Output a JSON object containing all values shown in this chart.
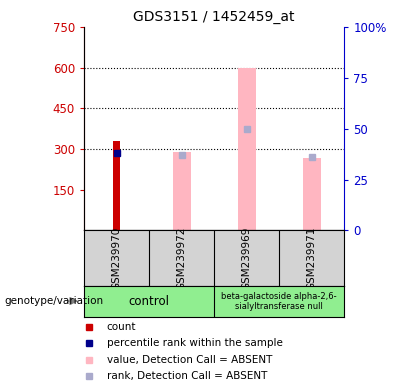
{
  "title": "GDS3151 / 1452459_at",
  "samples": [
    "GSM239970",
    "GSM239972",
    "GSM239969",
    "GSM239971"
  ],
  "x_positions": [
    1,
    2,
    3,
    4
  ],
  "count_values": [
    330,
    null,
    null,
    null
  ],
  "count_color": "#CC0000",
  "rank_pct_values": [
    38,
    null,
    null,
    null
  ],
  "rank_color": "#00008B",
  "absent_value_values": [
    null,
    290,
    600,
    265
  ],
  "absent_value_color": "#FFB6C1",
  "absent_rank_pct_values": [
    null,
    37,
    50,
    36
  ],
  "absent_rank_color": "#AAAACC",
  "ylim_left": [
    0,
    750
  ],
  "ylim_right": [
    0,
    100
  ],
  "yticks_left": [
    150,
    300,
    450,
    600,
    750
  ],
  "yticks_right": [
    0,
    25,
    50,
    75,
    100
  ],
  "left_axis_color": "#CC0000",
  "right_axis_color": "#0000CC",
  "bg_color": "#FFFFFF",
  "plot_bg_color": "#FFFFFF",
  "genotype_label": "genotype/variation",
  "sample_bg_color": "#D3D3D3",
  "group_bg_color": "#90EE90",
  "control_label": "control",
  "mutation_label": "beta-galactoside alpha-2,6-\nsialyltransferase null",
  "legend_items": [
    {
      "color": "#CC0000",
      "label": "count"
    },
    {
      "color": "#00008B",
      "label": "percentile rank within the sample"
    },
    {
      "color": "#FFB6C1",
      "label": "value, Detection Call = ABSENT"
    },
    {
      "color": "#AAAACC",
      "label": "rank, Detection Call = ABSENT"
    }
  ]
}
